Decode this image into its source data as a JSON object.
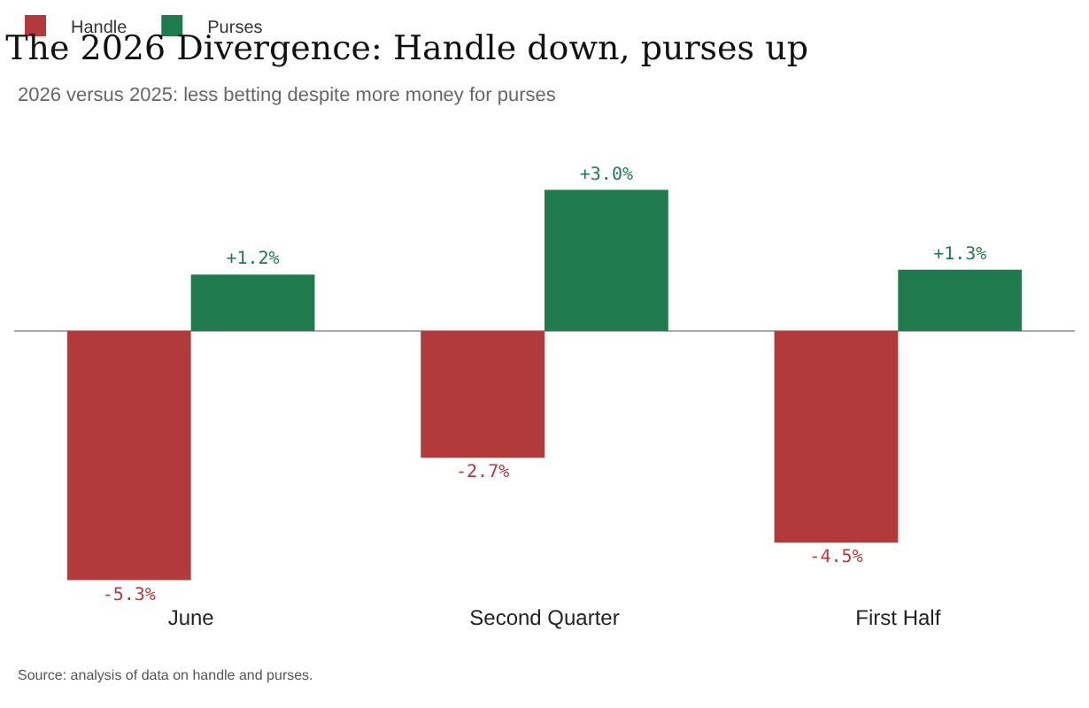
{
  "chart_data": {
    "type": "bar",
    "title": "The 2026 Divergence: Handle down, purses up",
    "subtitle": "2026 versus 2025: less betting despite more money for purses",
    "categories": [
      "June",
      "Second Quarter",
      "First Half"
    ],
    "series": [
      {
        "name": "Handle",
        "color": "#b33a3a",
        "values": [
          -5.3,
          -2.7,
          -4.5
        ],
        "value_labels": [
          "-5.3%",
          "-2.7%",
          "-4.5%"
        ]
      },
      {
        "name": "Purses",
        "color": "#1f7a4d",
        "values": [
          1.2,
          3.0,
          1.3
        ],
        "value_labels": [
          "+1.2%",
          "+3.0%",
          "+1.3%"
        ]
      }
    ],
    "annotations": [
      "Source: analysis of data on handle and purses."
    ],
    "legend": "top left",
    "grid": false
  }
}
